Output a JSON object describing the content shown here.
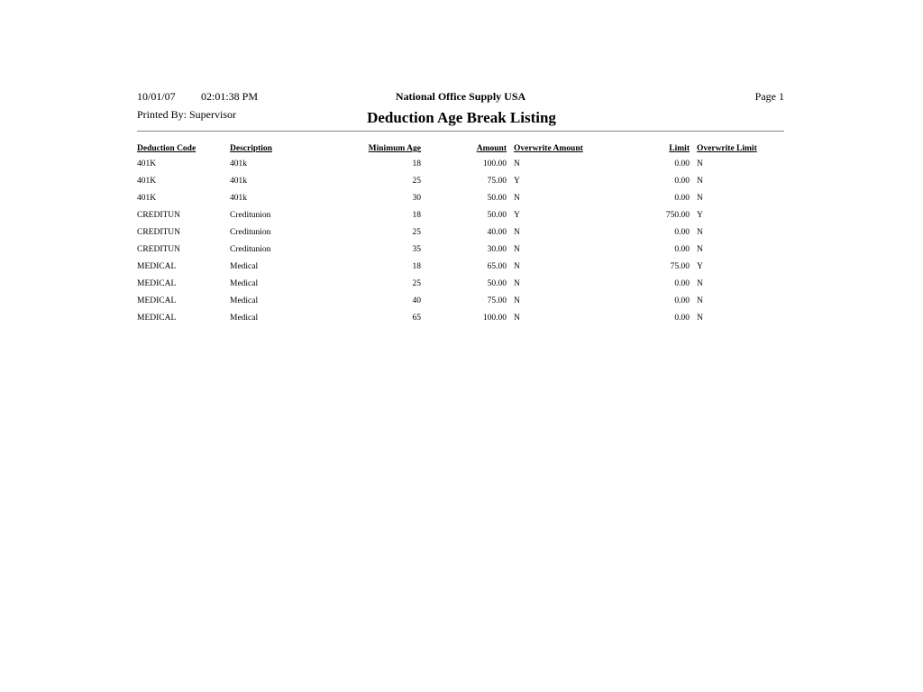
{
  "header": {
    "date": "10/01/07",
    "time": "02:01:38 PM",
    "company": "National Office Supply USA",
    "page": "Page 1",
    "printed_by": "Printed By: Supervisor",
    "title": "Deduction Age Break Listing"
  },
  "table": {
    "columns": [
      "Deduction Code",
      "Description",
      "Minimum Age",
      "Amount",
      "Overwrite Amount",
      "Limit",
      "Overwrite Limit"
    ],
    "rows": [
      [
        "401K",
        "401k",
        "18",
        "100.00",
        "N",
        "0.00",
        "N"
      ],
      [
        "401K",
        "401k",
        "25",
        "75.00",
        "Y",
        "0.00",
        "N"
      ],
      [
        "401K",
        "401k",
        "30",
        "50.00",
        "N",
        "0.00",
        "N"
      ],
      [
        "CREDITUN",
        "Creditunion",
        "18",
        "50.00",
        "Y",
        "750.00",
        "Y"
      ],
      [
        "CREDITUN",
        "Creditunion",
        "25",
        "40.00",
        "N",
        "0.00",
        "N"
      ],
      [
        "CREDITUN",
        "Creditunion",
        "35",
        "30.00",
        "N",
        "0.00",
        "N"
      ],
      [
        "MEDICAL",
        "Medical",
        "18",
        "65.00",
        "N",
        "75.00",
        "Y"
      ],
      [
        "MEDICAL",
        "Medical",
        "25",
        "50.00",
        "N",
        "0.00",
        "N"
      ],
      [
        "MEDICAL",
        "Medical",
        "40",
        "75.00",
        "N",
        "0.00",
        "N"
      ],
      [
        "MEDICAL",
        "Medical",
        "65",
        "100.00",
        "N",
        "0.00",
        "N"
      ]
    ]
  }
}
